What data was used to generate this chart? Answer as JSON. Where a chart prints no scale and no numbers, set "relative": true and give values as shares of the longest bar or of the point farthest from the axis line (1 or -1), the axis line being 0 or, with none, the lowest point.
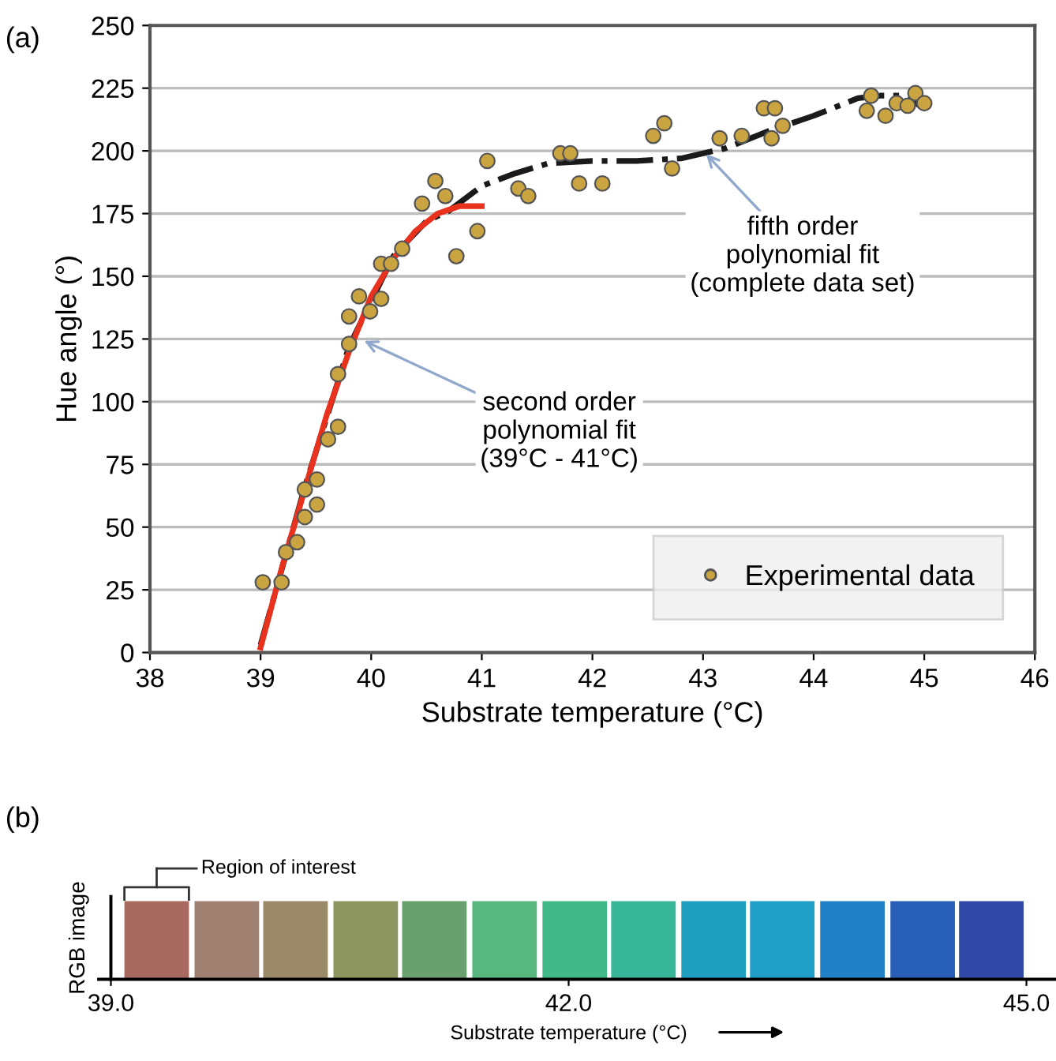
{
  "chart_data": [
    {
      "type": "scatter",
      "xlabel": "Substrate temperature (°C)",
      "ylabel": "Hue angle (°)",
      "xlim": [
        38,
        46
      ],
      "ylim": [
        0,
        250
      ],
      "xticks": [
        38,
        39,
        40,
        41,
        42,
        43,
        44,
        45,
        46
      ],
      "yticks": [
        0,
        25,
        50,
        75,
        100,
        125,
        150,
        175,
        200,
        225,
        250
      ],
      "grid": "y",
      "legend": "bottom right",
      "annotations": [
        "(a)",
        {
          "text": "second order\npolynomial fit\n(39°C - 41°C)",
          "x": 39.9,
          "y": 125
        },
        {
          "text": "fifth order\npolynomial fit\n(complete data set)",
          "x": 43.0,
          "y": 200
        }
      ],
      "series": [
        {
          "type": "line",
          "color": "#1a1a1a",
          "line_style": "dashdot",
          "x": [
            39.0,
            39.4,
            39.8,
            40.2,
            40.5,
            40.7,
            41.0,
            41.3,
            41.6,
            42.0,
            42.4,
            42.8,
            43.2,
            43.6,
            44.0,
            44.4,
            44.6,
            44.8,
            45.0
          ],
          "values": [
            3,
            66,
            122,
            158,
            172,
            176,
            186,
            191,
            195,
            196,
            196,
            197,
            201,
            208,
            214,
            221,
            222,
            222,
            217
          ]
        },
        {
          "type": "line",
          "color": "#e8321e",
          "line_style": "solid",
          "x": [
            39.0,
            39.2,
            39.4,
            39.6,
            39.8,
            40.0,
            40.2,
            40.4,
            40.6,
            40.8,
            41.0
          ],
          "values": [
            2,
            35,
            65,
            95,
            120,
            142,
            157,
            168,
            175,
            178,
            178
          ]
        },
        {
          "type": "scatter",
          "name": "Experimental data",
          "color": "#c9a441",
          "marker": "circle",
          "x": [
            39.02,
            39.19,
            39.23,
            39.33,
            39.4,
            39.4,
            39.51,
            39.51,
            39.61,
            39.7,
            39.7,
            39.8,
            39.8,
            39.89,
            39.99,
            40.09,
            40.09,
            40.18,
            40.28,
            40.46,
            40.58,
            40.67,
            40.77,
            40.96,
            41.05,
            41.33,
            41.42,
            41.71,
            41.8,
            41.88,
            42.09,
            42.55,
            42.65,
            42.72,
            43.15,
            43.35,
            43.55,
            43.62,
            43.65,
            43.72,
            44.48,
            44.52,
            44.65,
            44.75,
            44.85,
            44.92,
            45.0
          ],
          "values": [
            28,
            28,
            40,
            44,
            54,
            65,
            59,
            69,
            85,
            90,
            111,
            123,
            134,
            142,
            136,
            141,
            155,
            155,
            161,
            179,
            188,
            182,
            158,
            168,
            196,
            185,
            182,
            199,
            199,
            187,
            187,
            206,
            211,
            193,
            205,
            206,
            217,
            205,
            217,
            210,
            216,
            222,
            214,
            219,
            218,
            223,
            219
          ]
        }
      ]
    },
    {
      "type": "bar",
      "relative": true,
      "ylabel": "RGB image",
      "xlabel": "Substrate temperature (°C)",
      "xlim": [
        39,
        45
      ],
      "xticks": [
        {
          "value": 39,
          "label": "39.0"
        },
        {
          "value": 42,
          "label": "42.0"
        },
        {
          "value": 45,
          "label": "45.0"
        }
      ],
      "annotations": [
        "(b)",
        "Region of interest"
      ],
      "x": [
        39.3,
        39.76,
        40.21,
        40.67,
        41.12,
        41.58,
        42.04,
        42.49,
        42.95,
        43.4,
        43.86,
        44.32,
        44.77
      ],
      "values": [
        1,
        1,
        1,
        1,
        1,
        1,
        1,
        1,
        1,
        1,
        1,
        1,
        1
      ],
      "colors": [
        "#a86a60",
        "#a08070",
        "#9a8a68",
        "#8e9660",
        "#6aa070",
        "#58b880",
        "#40b888",
        "#38b898",
        "#20a0c0",
        "#20a0c8",
        "#2080c8",
        "#2860b8",
        "#3048a8"
      ]
    }
  ]
}
